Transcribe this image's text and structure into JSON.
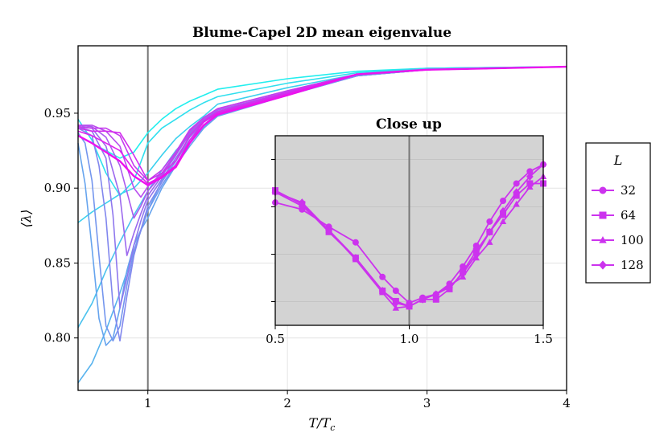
{
  "chart_data": [
    {
      "type": "line",
      "title": "Blume-Capel 2D mean eigenvalue",
      "xlabel": "T/T",
      "xlabel_sub": "c",
      "ylabel": "⟨λ⟩",
      "xlim": [
        0.5,
        4.0
      ],
      "ylim": [
        0.765,
        0.995
      ],
      "xticks": [
        "1",
        "2",
        "3",
        "4"
      ],
      "xtick_values": [
        1,
        2,
        3,
        4
      ],
      "yticks": [
        "0.80",
        "0.85",
        "0.90",
        "0.95"
      ],
      "ytick_values": [
        0.8,
        0.85,
        0.9,
        0.95
      ],
      "vline": 1.0,
      "grid": true,
      "colors": {
        "start": "#22eeee",
        "end": "#ee11ee",
        "vline": "#777777"
      },
      "series": [
        {
          "x": [
            0.5,
            0.6,
            0.7,
            0.8,
            0.9,
            1.0,
            1.1,
            1.2,
            1.3,
            1.4,
            1.5,
            2.0,
            2.5,
            3.0,
            4.0
          ],
          "values": [
            0.935,
            0.93,
            0.925,
            0.92,
            0.924,
            0.937,
            0.946,
            0.953,
            0.958,
            0.962,
            0.966,
            0.973,
            0.978,
            0.98,
            0.981
          ]
        },
        {
          "x": [
            0.5,
            0.6,
            0.7,
            0.8,
            0.9,
            1.0,
            1.1,
            1.2,
            1.3,
            1.4,
            1.5,
            2.0,
            2.5,
            3.0,
            4.0
          ],
          "values": [
            0.946,
            0.932,
            0.91,
            0.895,
            0.905,
            0.93,
            0.94,
            0.946,
            0.952,
            0.957,
            0.961,
            0.97,
            0.977,
            0.98,
            0.981
          ]
        },
        {
          "x": [
            0.5,
            0.6,
            0.7,
            0.8,
            0.9,
            1.0,
            1.1,
            1.2,
            1.3,
            1.4,
            1.5,
            2.0,
            2.5,
            3.0,
            4.0
          ],
          "values": [
            0.877,
            0.884,
            0.89,
            0.896,
            0.9,
            0.91,
            0.922,
            0.933,
            0.941,
            0.948,
            0.956,
            0.967,
            0.976,
            0.98,
            0.981
          ]
        },
        {
          "x": [
            0.5,
            0.6,
            0.7,
            0.8,
            0.9,
            1.0,
            1.1,
            1.2,
            1.3,
            1.4,
            1.5,
            2.0,
            2.5,
            3.0,
            4.0
          ],
          "values": [
            0.807,
            0.823,
            0.845,
            0.864,
            0.882,
            0.898,
            0.912,
            0.925,
            0.935,
            0.944,
            0.951,
            0.964,
            0.975,
            0.979,
            0.981
          ]
        },
        {
          "x": [
            0.5,
            0.6,
            0.7,
            0.8,
            0.9,
            1.0,
            1.1,
            1.2,
            1.3,
            1.4,
            1.5,
            2.0,
            2.5,
            3.0,
            4.0
          ],
          "values": [
            0.77,
            0.783,
            0.805,
            0.83,
            0.858,
            0.885,
            0.905,
            0.92,
            0.932,
            0.942,
            0.95,
            0.963,
            0.975,
            0.979,
            0.981
          ]
        },
        {
          "x": [
            0.5,
            0.55,
            0.6,
            0.65,
            0.7,
            0.75,
            0.8,
            0.85,
            0.9,
            0.95,
            1.0,
            1.1,
            1.2,
            1.3,
            1.4,
            1.5,
            2.0,
            2.5,
            3.0,
            4.0
          ],
          "values": [
            0.93,
            0.903,
            0.86,
            0.813,
            0.795,
            0.8,
            0.82,
            0.845,
            0.862,
            0.872,
            0.88,
            0.9,
            0.915,
            0.928,
            0.94,
            0.948,
            0.962,
            0.975,
            0.979,
            0.981
          ]
        },
        {
          "x": [
            0.5,
            0.55,
            0.6,
            0.65,
            0.7,
            0.75,
            0.8,
            0.85,
            0.9,
            0.95,
            1.0,
            1.1,
            1.2,
            1.3,
            1.4,
            1.5,
            2.0,
            2.5,
            3.0,
            4.0
          ],
          "values": [
            0.937,
            0.93,
            0.905,
            0.855,
            0.808,
            0.798,
            0.808,
            0.835,
            0.858,
            0.872,
            0.885,
            0.902,
            0.916,
            0.93,
            0.941,
            0.949,
            0.962,
            0.975,
            0.979,
            0.981
          ]
        },
        {
          "x": [
            0.5,
            0.6,
            0.65,
            0.7,
            0.75,
            0.8,
            0.85,
            0.9,
            0.95,
            1.0,
            1.1,
            1.2,
            1.3,
            1.4,
            1.5,
            2.0,
            2.5,
            3.0,
            4.0
          ],
          "values": [
            0.94,
            0.935,
            0.915,
            0.88,
            0.822,
            0.798,
            0.828,
            0.855,
            0.872,
            0.888,
            0.904,
            0.918,
            0.932,
            0.942,
            0.95,
            0.963,
            0.975,
            0.979,
            0.981
          ]
        },
        {
          "x": [
            0.5,
            0.6,
            0.7,
            0.75,
            0.8,
            0.85,
            0.9,
            0.95,
            1.0,
            1.1,
            1.2,
            1.3,
            1.4,
            1.5,
            2.0,
            2.5,
            3.0,
            4.0
          ],
          "values": [
            0.941,
            0.938,
            0.92,
            0.882,
            0.82,
            0.84,
            0.862,
            0.878,
            0.892,
            0.906,
            0.92,
            0.934,
            0.944,
            0.951,
            0.963,
            0.976,
            0.979,
            0.981
          ]
        },
        {
          "x": [
            0.5,
            0.6,
            0.7,
            0.8,
            0.85,
            0.9,
            0.95,
            1.0,
            1.1,
            1.2,
            1.3,
            1.4,
            1.5,
            2.0,
            2.5,
            3.0,
            4.0
          ],
          "values": [
            0.941,
            0.94,
            0.928,
            0.895,
            0.855,
            0.87,
            0.883,
            0.895,
            0.908,
            0.922,
            0.936,
            0.945,
            0.952,
            0.964,
            0.976,
            0.979,
            0.981
          ]
        },
        {
          "x": [
            0.5,
            0.6,
            0.7,
            0.8,
            0.9,
            0.95,
            1.0,
            1.1,
            1.2,
            1.3,
            1.4,
            1.5,
            2.0,
            2.5,
            3.0,
            4.0
          ],
          "values": [
            0.942,
            0.941,
            0.934,
            0.915,
            0.88,
            0.888,
            0.898,
            0.909,
            0.922,
            0.937,
            0.946,
            0.952,
            0.964,
            0.976,
            0.979,
            0.981
          ]
        },
        {
          "x": [
            0.5,
            0.6,
            0.7,
            0.8,
            0.9,
            0.95,
            1.0,
            1.1,
            1.2,
            1.3,
            1.4,
            1.5,
            2.0,
            2.5,
            3.0,
            4.0
          ],
          "values": [
            0.942,
            0.942,
            0.938,
            0.928,
            0.9,
            0.894,
            0.901,
            0.91,
            0.923,
            0.938,
            0.947,
            0.953,
            0.965,
            0.976,
            0.979,
            0.981
          ]
        },
        {
          "x": [
            0.5,
            0.6,
            0.7,
            0.8,
            0.9,
            1.0,
            1.1,
            1.2,
            1.3,
            1.4,
            1.5,
            2.0,
            2.5,
            3.0,
            4.0
          ],
          "values": [
            0.941,
            0.94,
            0.94,
            0.935,
            0.915,
            0.905,
            0.912,
            0.924,
            0.939,
            0.947,
            0.953,
            0.965,
            0.976,
            0.979,
            0.981
          ]
        },
        {
          "x": [
            0.5,
            0.6,
            0.7,
            0.8,
            0.9,
            1.0,
            1.1,
            1.2,
            1.3,
            1.4,
            1.5,
            2.0,
            2.5,
            3.0,
            4.0
          ],
          "values": [
            0.94,
            0.938,
            0.938,
            0.937,
            0.922,
            0.905,
            0.91,
            0.918,
            0.935,
            0.945,
            0.951,
            0.964,
            0.976,
            0.979,
            0.981
          ]
        },
        {
          "x": [
            0.5,
            0.6,
            0.7,
            0.8,
            0.9,
            1.0,
            1.1,
            1.2,
            1.3,
            1.4,
            1.5,
            2.0,
            2.5,
            3.0,
            4.0
          ],
          "values": [
            0.938,
            0.935,
            0.93,
            0.925,
            0.912,
            0.903,
            0.908,
            0.915,
            0.932,
            0.944,
            0.95,
            0.963,
            0.976,
            0.979,
            0.981
          ]
        },
        {
          "x": [
            0.5,
            0.6,
            0.7,
            0.8,
            0.9,
            1.0,
            1.1,
            1.2,
            1.3,
            1.4,
            1.5,
            2.0,
            2.5,
            3.0,
            4.0
          ],
          "values": [
            0.935,
            0.93,
            0.924,
            0.918,
            0.908,
            0.902,
            0.907,
            0.914,
            0.93,
            0.942,
            0.949,
            0.962,
            0.976,
            0.979,
            0.981
          ]
        }
      ]
    },
    {
      "type": "line",
      "title": "Close up",
      "xlim": [
        0.5,
        1.5
      ],
      "xticks": [
        "0.5",
        "1.0",
        "1.5"
      ],
      "xtick_values": [
        0.5,
        1.0,
        1.5
      ],
      "yticks_unlabeled": 4,
      "vline": 1.0,
      "grid": true,
      "background": "#d3d3d3",
      "legend": {
        "title": "L",
        "placement": "right"
      },
      "colors": {
        "line": "#cc33ee",
        "vline": "#777777"
      },
      "series": [
        {
          "name": "32",
          "marker": "circle",
          "x": [
            0.5,
            0.6,
            0.7,
            0.8,
            0.9,
            0.95,
            1.0,
            1.05,
            1.1,
            1.15,
            1.2,
            1.25,
            1.3,
            1.35,
            1.4,
            1.45,
            1.5
          ],
          "values": [
            0.9195,
            0.9175,
            0.9125,
            0.908,
            0.898,
            0.894,
            0.8905,
            0.892,
            0.893,
            0.896,
            0.901,
            0.907,
            0.914,
            0.92,
            0.925,
            0.9285,
            0.9305
          ]
        },
        {
          "name": "64",
          "marker": "square",
          "x": [
            0.5,
            0.6,
            0.7,
            0.8,
            0.9,
            0.95,
            1.0,
            1.05,
            1.1,
            1.15,
            1.2,
            1.25,
            1.3,
            1.35,
            1.4,
            1.45,
            1.5
          ],
          "values": [
            0.923,
            0.919,
            0.911,
            0.9035,
            0.894,
            0.891,
            0.8895,
            0.8915,
            0.8915,
            0.8945,
            0.8995,
            0.9055,
            0.911,
            0.916,
            0.9215,
            0.925,
            0.925
          ]
        },
        {
          "name": "100",
          "marker": "triangle",
          "x": [
            0.5,
            0.6,
            0.7,
            0.8,
            0.9,
            0.95,
            1.0,
            1.05,
            1.1,
            1.15,
            1.2,
            1.25,
            1.3,
            1.35,
            1.4,
            1.45,
            1.5
          ],
          "values": [
            0.9225,
            0.9185,
            0.9115,
            0.903,
            0.8935,
            0.889,
            0.8895,
            0.8915,
            0.893,
            0.8955,
            0.898,
            0.9035,
            0.908,
            0.914,
            0.919,
            0.924,
            0.927
          ]
        },
        {
          "name": "128",
          "marker": "diamond",
          "x": [
            0.5,
            0.6,
            0.7,
            0.8,
            0.9,
            0.95,
            1.0,
            1.05,
            1.1,
            1.15,
            1.2,
            1.25,
            1.3,
            1.35,
            1.4,
            1.45,
            1.5
          ],
          "values": [
            0.9225,
            0.9195,
            0.9115,
            0.9035,
            0.894,
            0.8905,
            0.8895,
            0.8915,
            0.893,
            0.895,
            0.899,
            0.9045,
            0.911,
            0.917,
            0.9225,
            0.927,
            0.9305
          ]
        }
      ]
    }
  ]
}
